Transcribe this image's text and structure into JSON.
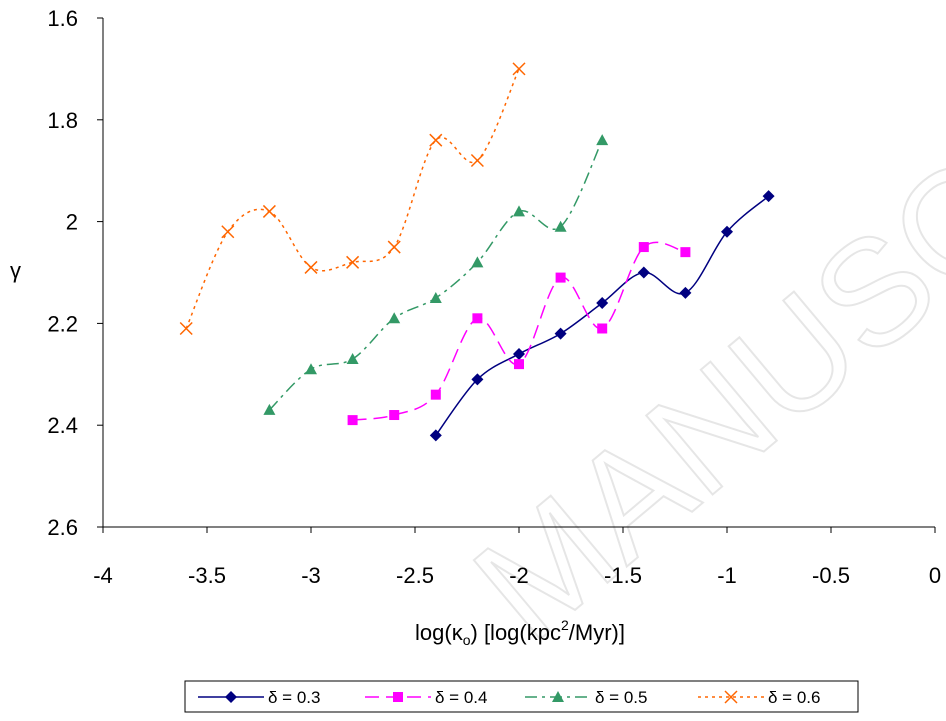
{
  "watermark": "MANUSCRIPT",
  "chart_data": {
    "type": "line",
    "xlabel": "log(κ",
    "xlabel_sub": "o",
    "xlabel_rest": ") [log(kpc",
    "xlabel_sup": "2",
    "xlabel_end": "/Myr)]",
    "ylabel": "γ",
    "xlim": [
      -4,
      0
    ],
    "ylim": [
      1.6,
      2.6
    ],
    "y_reversed": true,
    "x_ticks": [
      -4,
      -3.5,
      -3,
      -2.5,
      -2,
      -1.5,
      -1,
      -0.5,
      0
    ],
    "y_ticks": [
      1.6,
      1.8,
      2,
      2.2,
      2.4,
      2.6
    ],
    "grid": false,
    "legend_position": "bottom",
    "series": [
      {
        "name": "δ = 0.3",
        "color": "#000080",
        "marker": "diamond",
        "dash": "",
        "x": [
          -2.4,
          -2.2,
          -2.0,
          -1.8,
          -1.6,
          -1.4,
          -1.2,
          -1.0,
          -0.8
        ],
        "y": [
          2.42,
          2.31,
          2.26,
          2.22,
          2.16,
          2.1,
          2.14,
          2.02,
          1.95
        ]
      },
      {
        "name": "δ = 0.4",
        "color": "#ff00ff",
        "marker": "square",
        "dash": "14 7",
        "x": [
          -2.8,
          -2.6,
          -2.4,
          -2.2,
          -2.0,
          -1.8,
          -1.6,
          -1.4,
          -1.2
        ],
        "y": [
          2.39,
          2.38,
          2.34,
          2.19,
          2.28,
          2.11,
          2.21,
          2.05,
          2.06
        ]
      },
      {
        "name": "δ = 0.5",
        "color": "#339966",
        "marker": "triangle",
        "dash": "12 5 3 5",
        "x": [
          -3.2,
          -3.0,
          -2.8,
          -2.6,
          -2.4,
          -2.2,
          -2.0,
          -1.8,
          -1.6
        ],
        "y": [
          2.37,
          2.29,
          2.27,
          2.19,
          2.15,
          2.08,
          1.98,
          2.01,
          1.84
        ]
      },
      {
        "name": "δ = 0.6",
        "color": "#ff6600",
        "marker": "x",
        "dash": "3 4",
        "x": [
          -3.6,
          -3.4,
          -3.2,
          -3.0,
          -2.8,
          -2.6,
          -2.4,
          -2.2,
          -2.0
        ],
        "y": [
          2.21,
          2.02,
          1.98,
          2.09,
          2.08,
          2.05,
          1.84,
          1.88,
          1.7
        ]
      }
    ]
  }
}
